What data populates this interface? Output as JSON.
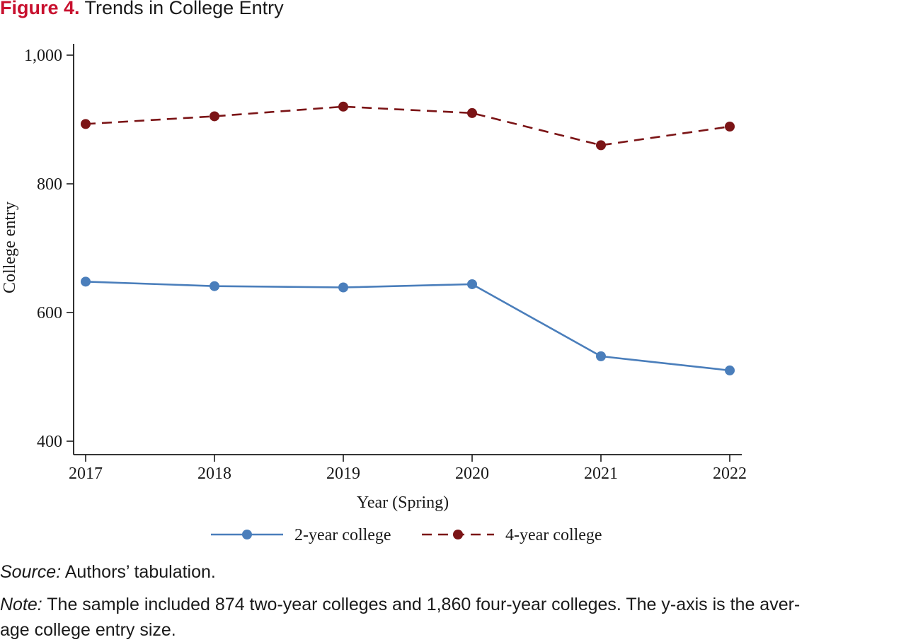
{
  "figure": {
    "label": "Figure 4.",
    "title": "Trends in College Entry"
  },
  "chart_data": {
    "type": "line",
    "x": [
      2017,
      2018,
      2019,
      2020,
      2021,
      2022
    ],
    "xlabel": "Year (Spring)",
    "ylabel": "College entry",
    "ylim": [
      400,
      1000
    ],
    "yticks": [
      400,
      600,
      800,
      1000
    ],
    "ytick_labels": [
      "400",
      "600",
      "800",
      "1,000"
    ],
    "grid": false,
    "legend_position": "bottom",
    "series": [
      {
        "name": "2-year college",
        "values": [
          648,
          641,
          639,
          644,
          532,
          510
        ],
        "color": "#4a7ebb",
        "line_style": "solid"
      },
      {
        "name": "4-year college",
        "values": [
          893,
          905,
          920,
          910,
          860,
          889
        ],
        "color": "#7b1416",
        "line_style": "dashed"
      }
    ]
  },
  "notes": {
    "source_label": "Source:",
    "source_text": "Authors’ tabulation.",
    "note_label": "Note:",
    "note_text_line1": "The sample included 874 two-year colleges and 1,860 four-year colleges. The y-axis is the aver-",
    "note_text_line2": "age college entry size."
  }
}
